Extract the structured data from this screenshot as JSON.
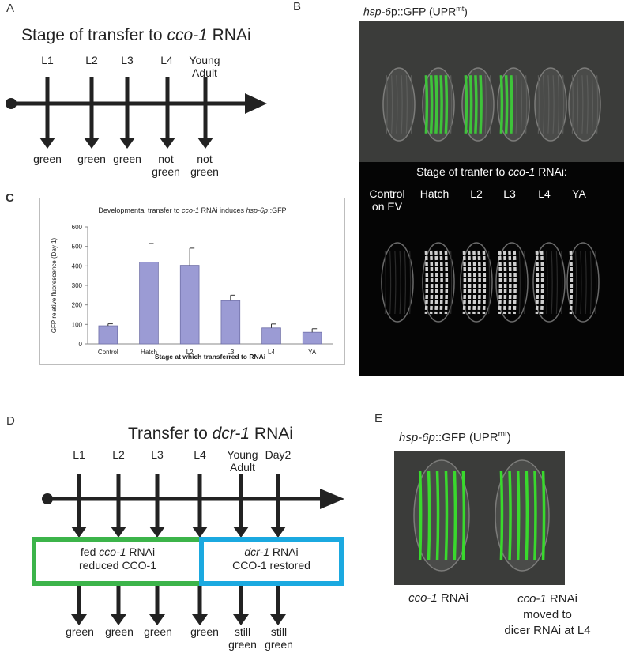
{
  "panels": {
    "a": "A",
    "b": "B",
    "c": "C",
    "d": "D",
    "e": "E"
  },
  "panel_a": {
    "title_prefix": "Stage of transfer to ",
    "title_gene": "cco-1",
    "title_suffix": " RNAi",
    "stages": [
      "L1",
      "L2",
      "L3",
      "L4",
      "Young Adult"
    ],
    "outcomes": [
      "green",
      "green",
      "green",
      "not green",
      "not green"
    ]
  },
  "panel_b": {
    "reporter_gene": "hsp-6",
    "reporter_rest": "p::GFP (UPR",
    "reporter_sup": "mt",
    "reporter_close": ")",
    "caption_prefix": "Stage of tranfer to ",
    "caption_gene": "cco-1",
    "caption_suffix": " RNAi:",
    "lanes": [
      "Control on EV",
      "Hatch",
      "L2",
      "L3",
      "L4",
      "YA"
    ],
    "fluor_color": "#3ec43a"
  },
  "panel_c": {
    "chart_data": {
      "type": "bar",
      "title_prefix": "Developmental transfer to ",
      "title_gene1": "cco-1",
      "title_middle": " RNAi induces ",
      "title_gene2": "hsp-6p",
      "title_suffix": "::GFP",
      "xlabel": "Stage at which transferred to RNAi",
      "ylabel": "GFP relative fluorescence  (Day 1)",
      "categories": [
        "Control",
        "Hatch",
        "L2",
        "L3",
        "L4",
        "YA"
      ],
      "values": [
        93,
        420,
        403,
        222,
        82,
        60
      ],
      "errors": [
        10,
        95,
        88,
        28,
        20,
        18
      ],
      "ylim": [
        0,
        600
      ],
      "yticks": [
        0,
        100,
        200,
        300,
        400,
        500,
        600
      ],
      "bar_color": "#9b9bd4",
      "grid": false
    }
  },
  "panel_d": {
    "title_prefix": "Transfer to ",
    "title_gene": "dcr-1",
    "title_suffix": " RNAi",
    "stages": [
      "L1",
      "L2",
      "L3",
      "L4",
      "Young Adult",
      "Day2"
    ],
    "box1_line1_prefix": "fed ",
    "box1_line1_gene": "cco-1",
    "box1_line1_suffix": " RNAi",
    "box1_line2": "reduced CCO-1",
    "box1_color": "#3cb44a",
    "box2_line1_gene": "dcr-1",
    "box2_line1_suffix": " RNAi",
    "box2_line2": "CCO-1 restored",
    "box2_color": "#1ba9e0",
    "outcomes": [
      "green",
      "green",
      "green",
      "green",
      "still green",
      "still green"
    ]
  },
  "panel_e": {
    "reporter_gene": "hsp-6p",
    "reporter_rest": "::GFP (UPR",
    "reporter_sup": "mt",
    "reporter_close": ")",
    "left_gene": "cco-1",
    "left_suffix": " RNAi",
    "right_gene": "cco-1",
    "right_suffix": " RNAi",
    "right_line2": "moved to",
    "right_line3": "dicer RNAi at L4"
  }
}
